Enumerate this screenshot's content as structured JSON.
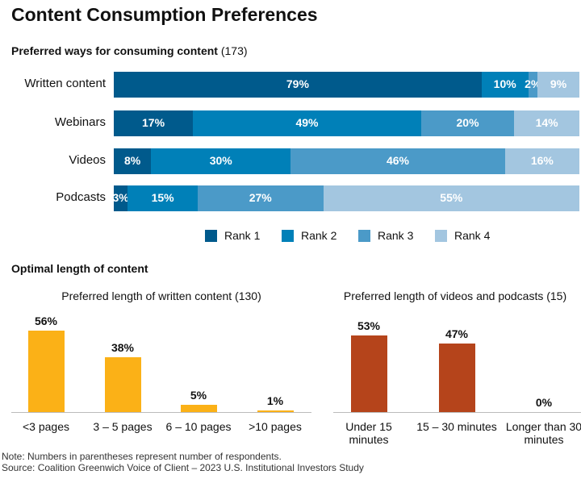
{
  "title": "Content Consumption Preferences",
  "chart_data": [
    {
      "type": "stacked_bar_h",
      "title": "Preferred ways for consuming content",
      "title_note": "(173)",
      "categories": [
        "Written content",
        "Webinars",
        "Videos",
        "Podcasts"
      ],
      "xlim": [
        0,
        100
      ],
      "legend": "bottom",
      "series": [
        {
          "name": "Rank 1",
          "color": "#005a8c",
          "values": [
            79,
            17,
            8,
            3
          ],
          "value_labels": [
            "79%",
            "17%",
            "8%",
            "3%"
          ]
        },
        {
          "name": "Rank 2",
          "color": "#0080b8",
          "values": [
            10,
            49,
            30,
            15
          ],
          "value_labels": [
            "10%",
            "49%",
            "30%",
            "15%"
          ]
        },
        {
          "name": "Rank 3",
          "color": "#4b9ac8",
          "values": [
            2,
            20,
            46,
            27
          ],
          "value_labels": [
            "2%",
            "20%",
            "46%",
            "27%"
          ]
        },
        {
          "name": "Rank 4",
          "color": "#a3c6e0",
          "values": [
            9,
            14,
            16,
            55
          ],
          "value_labels": [
            "9%",
            "14%",
            "16%",
            "55%"
          ]
        }
      ]
    },
    {
      "type": "bar",
      "section_title": "Optimal length of content",
      "title": "Preferred length of written content (130)",
      "categories": [
        "<3 pages",
        "3 – 5 pages",
        "6 – 10 pages",
        ">10 pages"
      ],
      "values": [
        56,
        38,
        5,
        1
      ],
      "value_labels": [
        "56%",
        "38%",
        "5%",
        "1%"
      ],
      "color": "#fbb117",
      "ylim": [
        0,
        60
      ]
    },
    {
      "type": "bar",
      "title": "Preferred length of videos and podcasts (15)",
      "categories": [
        "Under 15 minutes",
        "15 – 30 minutes",
        "Longer than 30 minutes"
      ],
      "values": [
        53,
        47,
        0
      ],
      "value_labels": [
        "53%",
        "47%",
        "0%"
      ],
      "color": "#b5441b",
      "ylim": [
        0,
        60
      ]
    }
  ],
  "notes": [
    "Note: Numbers in parentheses represent number of respondents.",
    "Source: Coalition Greenwich Voice of Client – 2023 U.S. Institutional Investors Study"
  ]
}
